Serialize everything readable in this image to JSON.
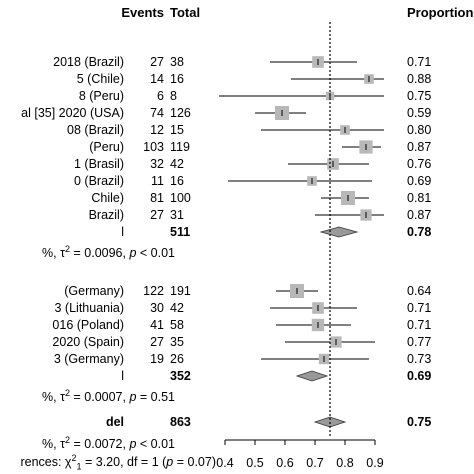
{
  "chart_data": {
    "type": "forest",
    "columns": {
      "events": "Events",
      "total": "Total",
      "proportion": "Proportion"
    },
    "axis": {
      "ticks": [
        "0.4",
        "0.5",
        "0.6",
        "0.7",
        "0.8",
        "0.9"
      ],
      "xlim": [
        0.4,
        0.9
      ],
      "reference_line": 0.75
    },
    "groups": [
      {
        "studies": [
          {
            "label": "2018 (Brazil)",
            "events": "27",
            "total": "38",
            "est": 0.71,
            "lo": 0.55,
            "hi": 0.84,
            "weight": 0.7,
            "prop": "0.71"
          },
          {
            "label": "5 (Chile)",
            "events": "14",
            "total": "16",
            "est": 0.88,
            "lo": 0.62,
            "hi": 0.98,
            "weight": 0.45,
            "prop": "0.88"
          },
          {
            "label": "8 (Peru)",
            "events": "6",
            "total": "8",
            "est": 0.75,
            "lo": 0.35,
            "hi": 0.97,
            "weight": 0.3,
            "prop": "0.75"
          },
          {
            "label": "al [35] 2020 (USA)",
            "events": "74",
            "total": "126",
            "est": 0.59,
            "lo": 0.5,
            "hi": 0.67,
            "weight": 1.0,
            "prop": "0.59"
          },
          {
            "label": "08 (Brazil)",
            "events": "12",
            "total": "15",
            "est": 0.8,
            "lo": 0.52,
            "hi": 0.96,
            "weight": 0.45,
            "prop": "0.80"
          },
          {
            "label": "(Peru)",
            "events": "103",
            "total": "119",
            "est": 0.87,
            "lo": 0.79,
            "hi": 0.92,
            "weight": 0.9,
            "prop": "0.87"
          },
          {
            "label": "1 (Brasil)",
            "events": "32",
            "total": "42",
            "est": 0.76,
            "lo": 0.61,
            "hi": 0.88,
            "weight": 0.7,
            "prop": "0.76"
          },
          {
            "label": "0 (Brazil)",
            "events": "11",
            "total": "16",
            "est": 0.69,
            "lo": 0.41,
            "hi": 0.89,
            "weight": 0.45,
            "prop": "0.69"
          },
          {
            "label": "Chile)",
            "events": "81",
            "total": "100",
            "est": 0.81,
            "lo": 0.72,
            "hi": 0.88,
            "weight": 1.0,
            "prop": "0.81"
          },
          {
            "label": "Brazil)",
            "events": "27",
            "total": "31",
            "est": 0.87,
            "lo": 0.7,
            "hi": 0.96,
            "weight": 0.65,
            "prop": "0.87"
          }
        ],
        "pooled": {
          "label": "l",
          "total": "511",
          "est": 0.78,
          "lo": 0.72,
          "hi": 0.84,
          "prop": "0.78"
        },
        "heterogeneity": [
          "%, τ",
          "2",
          " = 0.0096, ",
          "p",
          " < 0.01"
        ]
      },
      {
        "studies": [
          {
            "label": "(Germany)",
            "events": "122",
            "total": "191",
            "est": 0.64,
            "lo": 0.57,
            "hi": 0.71,
            "weight": 1.0,
            "prop": "0.64"
          },
          {
            "label": "3 (Lithuania)",
            "events": "30",
            "total": "42",
            "est": 0.71,
            "lo": 0.55,
            "hi": 0.84,
            "weight": 0.7,
            "prop": "0.71"
          },
          {
            "label": "016 (Poland)",
            "events": "41",
            "total": "58",
            "est": 0.71,
            "lo": 0.57,
            "hi": 0.82,
            "weight": 0.8,
            "prop": "0.71"
          },
          {
            "label": "2020 (Spain)",
            "events": "27",
            "total": "35",
            "est": 0.77,
            "lo": 0.6,
            "hi": 0.9,
            "weight": 0.65,
            "prop": "0.77"
          },
          {
            "label": "3 (Germany)",
            "events": "19",
            "total": "26",
            "est": 0.73,
            "lo": 0.52,
            "hi": 0.88,
            "weight": 0.55,
            "prop": "0.73"
          }
        ],
        "pooled": {
          "label": "l",
          "total": "352",
          "est": 0.69,
          "lo": 0.64,
          "hi": 0.74,
          "prop": "0.69"
        },
        "heterogeneity": [
          "%, τ",
          "2",
          " = 0.0007, ",
          "p",
          " = 0.51"
        ]
      }
    ],
    "overall": {
      "label": "del",
      "total": "863",
      "est": 0.75,
      "lo": 0.7,
      "hi": 0.8,
      "prop": "0.75"
    },
    "overall_heterogeneity": [
      "%, τ",
      "2",
      " = 0.0072, ",
      "p",
      " < 0.01"
    ],
    "subgroup_test": [
      "rences: χ",
      "2",
      "1",
      " = 3.20, df = 1 (",
      "p",
      " = 0.07)"
    ]
  }
}
